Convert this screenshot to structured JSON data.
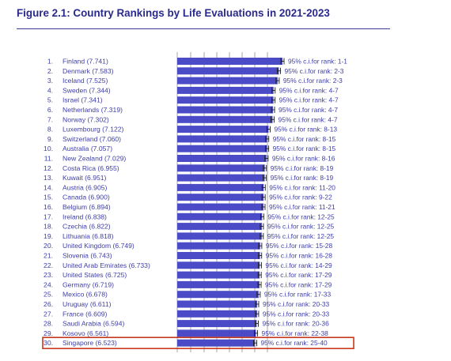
{
  "title": "Figure 2.1: Country Rankings by Life Evaluations in 2021-2023",
  "colors": {
    "title": "#2a2a8c",
    "bar": "#4b4bc8",
    "label": "#3e3ea8",
    "grid": "#6b6b6b",
    "highlight": "#c8381f"
  },
  "chart_data": {
    "type": "bar",
    "orientation": "horizontal",
    "title": "Figure 2.1: Country Rankings by Life Evaluations in 2021-2023",
    "grid": true,
    "highlighted_rank": 30,
    "rows": [
      {
        "rank": "1.",
        "country": "Finland",
        "score": "7.741",
        "ci": "95% c.i.for rank: 1-1"
      },
      {
        "rank": "2.",
        "country": "Denmark",
        "score": "7.583",
        "ci": "95% c.i.for rank: 2-3"
      },
      {
        "rank": "3.",
        "country": "Iceland",
        "score": "7.525",
        "ci": "95% c.i.for rank: 2-3"
      },
      {
        "rank": "4.",
        "country": "Sweden",
        "score": "7.344",
        "ci": "95% c.i.for rank: 4-7"
      },
      {
        "rank": "5.",
        "country": "Israel",
        "score": "7.341",
        "ci": "95% c.i.for rank: 4-7"
      },
      {
        "rank": "6.",
        "country": "Netherlands",
        "score": "7.319",
        "ci": "95% c.i.for rank: 4-7"
      },
      {
        "rank": "7.",
        "country": "Norway",
        "score": "7.302",
        "ci": "95% c.i.for rank: 4-7"
      },
      {
        "rank": "8.",
        "country": "Luxembourg",
        "score": "7.122",
        "ci": "95% c.i.for rank: 8-13"
      },
      {
        "rank": "9.",
        "country": "Switzerland",
        "score": "7.060",
        "ci": "95% c.i.for rank: 8-15"
      },
      {
        "rank": "10.",
        "country": "Australia",
        "score": "7.057",
        "ci": "95% c.i.for rank: 8-15"
      },
      {
        "rank": "11.",
        "country": "New Zealand",
        "score": "7.029",
        "ci": "95% c.i.for rank: 8-16"
      },
      {
        "rank": "12.",
        "country": "Costa Rica",
        "score": "6.955",
        "ci": "95% c.i.for rank: 8-19"
      },
      {
        "rank": "13.",
        "country": "Kuwait",
        "score": "6.951",
        "ci": "95% c.i.for rank: 8-19"
      },
      {
        "rank": "14.",
        "country": "Austria",
        "score": "6.905",
        "ci": "95% c.i.for rank: 11-20"
      },
      {
        "rank": "15.",
        "country": "Canada",
        "score": "6.900",
        "ci": "95% c.i.for rank: 9-22"
      },
      {
        "rank": "16.",
        "country": "Belgium",
        "score": "6.894",
        "ci": "95% c.i.for rank: 11-21"
      },
      {
        "rank": "17.",
        "country": "Ireland",
        "score": "6.838",
        "ci": "95% c.i.for rank: 12-25"
      },
      {
        "rank": "18.",
        "country": "Czechia",
        "score": "6.822",
        "ci": "95% c.i.for rank: 12-25"
      },
      {
        "rank": "19.",
        "country": "Lithuania",
        "score": "6.818",
        "ci": "95% c.i.for rank: 12-25"
      },
      {
        "rank": "20.",
        "country": "United Kingdom",
        "score": "6.749",
        "ci": "95% c.i.for rank: 15-28"
      },
      {
        "rank": "21.",
        "country": "Slovenia",
        "score": "6.743",
        "ci": "95% c.i.for rank: 16-28"
      },
      {
        "rank": "22.",
        "country": "United Arab Emirates",
        "score": "6.733",
        "ci": "95% c.i.for rank: 14-29"
      },
      {
        "rank": "23.",
        "country": "United States",
        "score": "6.725",
        "ci": "95% c.i.for rank: 17-29"
      },
      {
        "rank": "24.",
        "country": "Germany",
        "score": "6.719",
        "ci": "95% c.i.for rank: 17-29"
      },
      {
        "rank": "25.",
        "country": "Mexico",
        "score": "6.678",
        "ci": "95% c.i.for rank: 17-33"
      },
      {
        "rank": "26.",
        "country": "Uruguay",
        "score": "6.611",
        "ci": "95% c.i.for rank: 20-33"
      },
      {
        "rank": "27.",
        "country": "France",
        "score": "6.609",
        "ci": "95% c.i.for rank: 20-33"
      },
      {
        "rank": "28.",
        "country": "Saudi Arabia",
        "score": "6.594",
        "ci": "95% c.i.for rank: 20-36"
      },
      {
        "rank": "29.",
        "country": "Kosovo",
        "score": "6.561",
        "ci": "95% c.i.for rank: 22-38"
      },
      {
        "rank": "30.",
        "country": "Singapore",
        "score": "6.523",
        "ci": "95% c.i.for rank: 25-40"
      }
    ]
  }
}
